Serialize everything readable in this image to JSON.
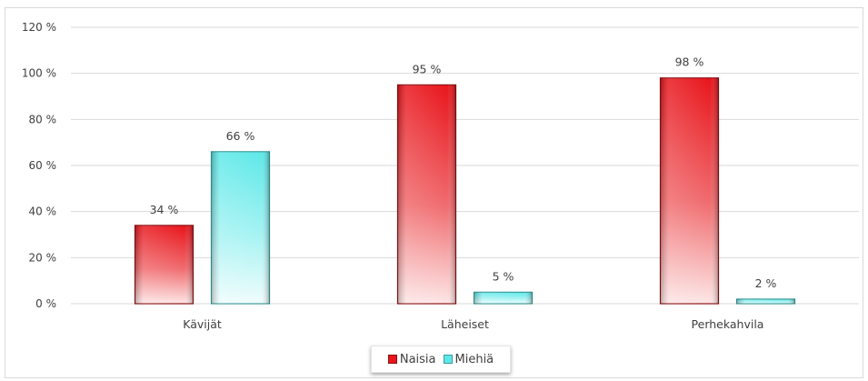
{
  "chart_data": {
    "type": "bar",
    "categories": [
      "Kävijät",
      "Läheiset",
      "Perhekahvila"
    ],
    "series": [
      {
        "name": "Naisia",
        "values": [
          34,
          95,
          98
        ],
        "labels": [
          "34 %",
          "95 %",
          "98 %"
        ],
        "color": "#e8161c"
      },
      {
        "name": "Miehiä",
        "values": [
          66,
          5,
          2
        ],
        "labels": [
          "66 %",
          "5 %",
          "2 %"
        ],
        "color": "#5ee8e8"
      }
    ],
    "yticks": [
      "0 %",
      "20 %",
      "40 %",
      "60 %",
      "80 %",
      "100 %",
      "120 %"
    ],
    "ylim": [
      0,
      120
    ],
    "grid": true,
    "legend_position": "bottom"
  }
}
